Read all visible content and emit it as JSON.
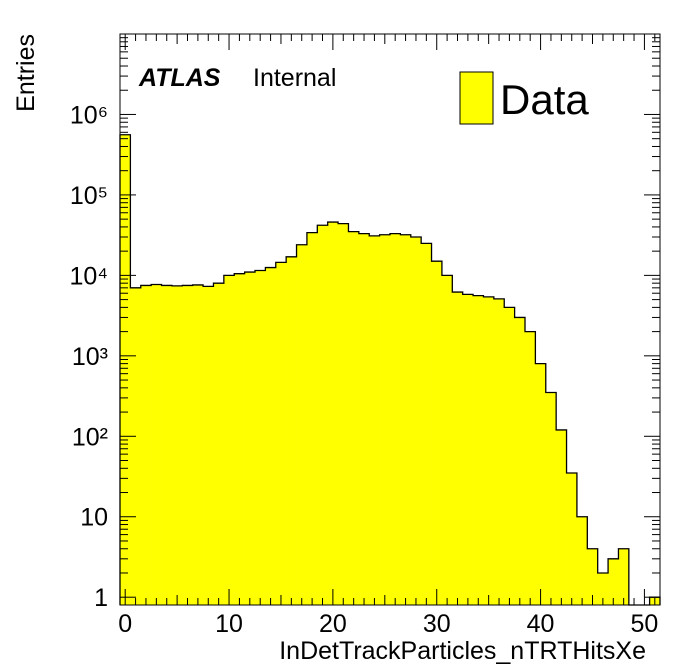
{
  "chart_data": {
    "type": "bar",
    "title": "",
    "xlabel": "InDetTrackParticles_nTRTHitsXe",
    "ylabel": "Entries",
    "xlim": [
      -0.5,
      51.5
    ],
    "ylim": [
      0.8,
      10000000
    ],
    "y_scale": "log",
    "grid": false,
    "legend_position": "top-right",
    "annotation": {
      "experiment": "ATLAS",
      "status": "Internal"
    },
    "series": [
      {
        "name": "Data",
        "color": "#ffff00",
        "bin_width": 1,
        "bin_centers": [
          0,
          1,
          2,
          3,
          4,
          5,
          6,
          7,
          8,
          9,
          10,
          11,
          12,
          13,
          14,
          15,
          16,
          17,
          18,
          19,
          20,
          21,
          22,
          23,
          24,
          25,
          26,
          27,
          28,
          29,
          30,
          31,
          32,
          33,
          34,
          35,
          36,
          37,
          38,
          39,
          40,
          41,
          42,
          43,
          44,
          45,
          46,
          47,
          48,
          49,
          50,
          51
        ],
        "values": [
          560000,
          7000,
          7500,
          7700,
          7500,
          7400,
          7500,
          7600,
          7300,
          8000,
          10000,
          10500,
          11000,
          11500,
          12500,
          14500,
          17000,
          24000,
          34000,
          42000,
          46000,
          44000,
          35000,
          33000,
          31000,
          32000,
          33000,
          32000,
          30000,
          25000,
          15000,
          10000,
          6200,
          5800,
          5600,
          5400,
          5100,
          4000,
          3000,
          2000,
          800,
          350,
          120,
          35,
          10,
          4,
          2,
          3,
          4,
          0,
          0,
          1
        ]
      }
    ],
    "x_ticks": [
      "0",
      "10",
      "20",
      "30",
      "40",
      "50"
    ],
    "y_ticks": [
      "1",
      "10",
      "10²",
      "10³",
      "10⁴",
      "10⁵",
      "10⁶"
    ]
  }
}
